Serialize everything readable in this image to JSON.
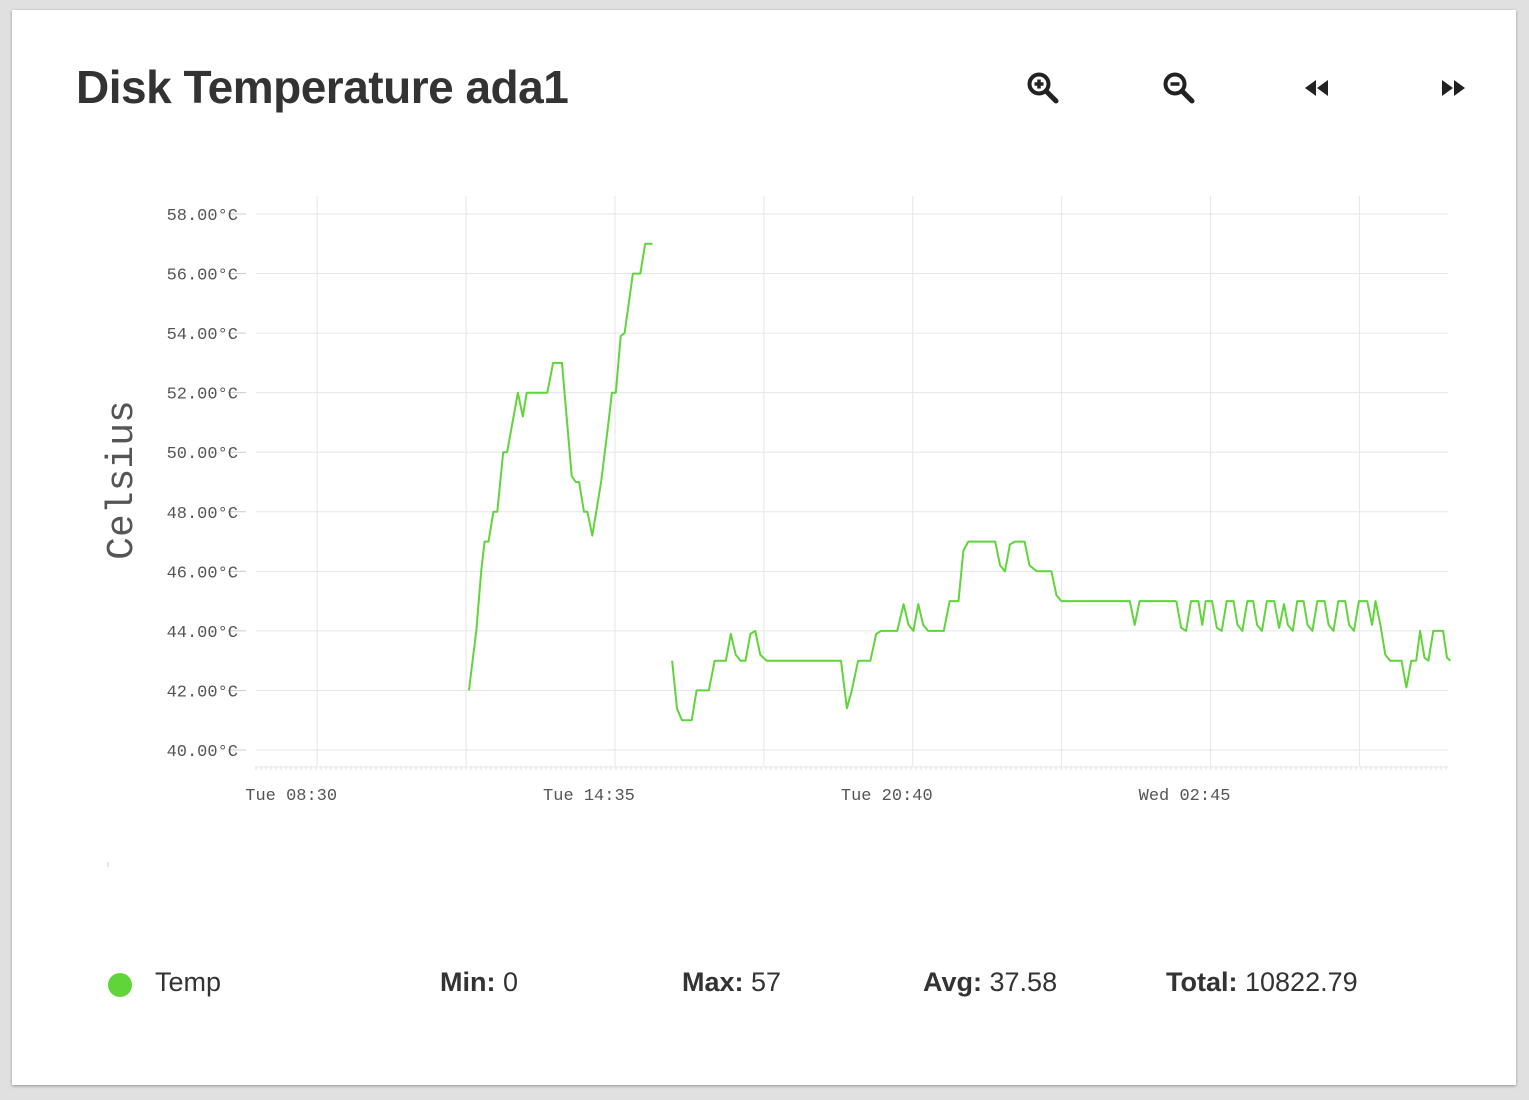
{
  "title": "Disk Temperature ada1",
  "toolbar": {
    "icons": [
      "zoom-in-icon",
      "zoom-out-icon",
      "rewind-icon",
      "fast-forward-icon"
    ]
  },
  "colors": {
    "series": "#5fd53a",
    "grid": "#e6e6e6",
    "title": "#333333"
  },
  "legend": {
    "series_name": "Temp",
    "min_label": "Min:",
    "min_value": "0",
    "max_label": "Max:",
    "max_value": "57",
    "avg_label": "Avg:",
    "avg_value": "37.58",
    "total_label": "Total:",
    "total_value": "10822.79"
  },
  "chart_data": {
    "type": "line",
    "ylabel": "Celsius",
    "xlabel": "",
    "ylim": [
      40,
      58
    ],
    "yticks": [
      "58.00°C",
      "56.00°C",
      "54.00°C",
      "52.00°C",
      "50.00°C",
      "48.00°C",
      "46.00°C",
      "44.00°C",
      "42.00°C",
      "40.00°C"
    ],
    "ytick_values": [
      58,
      56,
      54,
      52,
      50,
      48,
      46,
      44,
      42,
      40
    ],
    "xlim_hours": [
      7.25,
      31.6
    ],
    "xticks": [
      {
        "label": "Tue 08:30",
        "hours": 8.5
      },
      {
        "label": "Tue 14:35",
        "hours": 14.583
      },
      {
        "label": "Tue 20:40",
        "hours": 20.667
      },
      {
        "label": "Wed 02:45",
        "hours": 26.75
      }
    ],
    "grid": true,
    "series": [
      {
        "name": "Temp",
        "segments": [
          [
            [
              11.6,
              42
            ],
            [
              11.75,
              44
            ],
            [
              11.85,
              46
            ],
            [
              11.92,
              47
            ],
            [
              12.0,
              47
            ],
            [
              12.1,
              48
            ],
            [
              12.18,
              48
            ],
            [
              12.3,
              50
            ],
            [
              12.38,
              50
            ],
            [
              12.6,
              52
            ],
            [
              12.7,
              51.2
            ],
            [
              12.78,
              52
            ],
            [
              12.9,
              52
            ],
            [
              13.2,
              52
            ],
            [
              13.32,
              53
            ],
            [
              13.5,
              53
            ],
            [
              13.7,
              49.2
            ],
            [
              13.78,
              49
            ],
            [
              13.85,
              49
            ],
            [
              13.95,
              48
            ],
            [
              14.02,
              48
            ],
            [
              14.12,
              47.2
            ],
            [
              14.3,
              49
            ],
            [
              14.45,
              51
            ],
            [
              14.52,
              52
            ],
            [
              14.6,
              52
            ],
            [
              14.7,
              53.9
            ],
            [
              14.78,
              54
            ],
            [
              14.95,
              56
            ],
            [
              15.02,
              56
            ],
            [
              15.1,
              56
            ],
            [
              15.2,
              57
            ],
            [
              15.35,
              57
            ]
          ],
          [
            [
              15.75,
              43
            ],
            [
              15.85,
              41.4
            ],
            [
              15.95,
              41
            ],
            [
              16.15,
              41
            ],
            [
              16.25,
              42
            ],
            [
              16.35,
              42
            ],
            [
              16.5,
              42
            ],
            [
              16.62,
              43
            ],
            [
              16.72,
              43
            ],
            [
              16.85,
              43
            ],
            [
              16.95,
              43.9
            ],
            [
              17.05,
              43.2
            ],
            [
              17.15,
              43
            ],
            [
              17.25,
              43
            ],
            [
              17.35,
              43.9
            ],
            [
              17.45,
              44
            ],
            [
              17.55,
              43.2
            ],
            [
              17.68,
              43
            ],
            [
              19.2,
              43
            ],
            [
              19.32,
              41.4
            ],
            [
              19.42,
              42
            ],
            [
              19.55,
              43
            ],
            [
              19.65,
              43
            ],
            [
              19.8,
              43
            ],
            [
              19.92,
              43.9
            ],
            [
              20.02,
              44
            ],
            [
              20.35,
              44
            ],
            [
              20.48,
              44.9
            ],
            [
              20.58,
              44.2
            ],
            [
              20.68,
              44
            ],
            [
              20.78,
              44.9
            ],
            [
              20.88,
              44.2
            ],
            [
              20.98,
              44
            ],
            [
              21.3,
              44
            ],
            [
              21.42,
              45
            ],
            [
              21.6,
              45
            ],
            [
              21.7,
              46.7
            ],
            [
              21.8,
              47
            ],
            [
              22.35,
              47
            ],
            [
              22.45,
              46.2
            ],
            [
              22.55,
              46
            ],
            [
              22.65,
              46.9
            ],
            [
              22.75,
              47
            ],
            [
              22.95,
              47
            ],
            [
              23.05,
              46.2
            ],
            [
              23.2,
              46
            ],
            [
              23.5,
              46
            ],
            [
              23.6,
              45.2
            ],
            [
              23.7,
              45
            ],
            [
              25.1,
              45
            ],
            [
              25.2,
              44.2
            ],
            [
              25.3,
              45
            ],
            [
              26.05,
              45
            ]
          ],
          [
            [
              26.05,
              45
            ],
            [
              26.15,
              44.1
            ],
            [
              26.25,
              44
            ],
            [
              26.35,
              45
            ],
            [
              26.5,
              45
            ],
            [
              26.58,
              44.2
            ],
            [
              26.65,
              45
            ],
            [
              26.78,
              45
            ],
            [
              26.88,
              44.1
            ],
            [
              26.98,
              44
            ],
            [
              27.08,
              45
            ],
            [
              27.22,
              45
            ],
            [
              27.3,
              44.2
            ],
            [
              27.4,
              44
            ],
            [
              27.5,
              45
            ],
            [
              27.62,
              45
            ],
            [
              27.7,
              44.2
            ],
            [
              27.8,
              44
            ],
            [
              27.9,
              45
            ],
            [
              28.05,
              45
            ],
            [
              28.15,
              44.1
            ],
            [
              28.25,
              44.9
            ],
            [
              28.33,
              44.2
            ],
            [
              28.43,
              44
            ],
            [
              28.52,
              45
            ],
            [
              28.65,
              45
            ],
            [
              28.73,
              44.2
            ],
            [
              28.83,
              44
            ],
            [
              28.93,
              45
            ],
            [
              29.08,
              45
            ],
            [
              29.16,
              44.2
            ],
            [
              29.26,
              44
            ],
            [
              29.36,
              45
            ],
            [
              29.5,
              45
            ],
            [
              29.58,
              44.2
            ],
            [
              29.68,
              44
            ],
            [
              29.78,
              45
            ],
            [
              29.95,
              45
            ],
            [
              30.05,
              44.2
            ],
            [
              30.12,
              45
            ],
            [
              30.22,
              44.2
            ],
            [
              30.32,
              43.2
            ],
            [
              30.42,
              43
            ],
            [
              30.65,
              43
            ],
            [
              30.75,
              42.1
            ],
            [
              30.85,
              43
            ],
            [
              30.95,
              43
            ],
            [
              31.03,
              44
            ],
            [
              31.12,
              43.1
            ],
            [
              31.2,
              43
            ],
            [
              31.3,
              44
            ],
            [
              31.5,
              44
            ],
            [
              31.58,
              43.1
            ],
            [
              31.65,
              43
            ]
          ]
        ]
      }
    ]
  }
}
